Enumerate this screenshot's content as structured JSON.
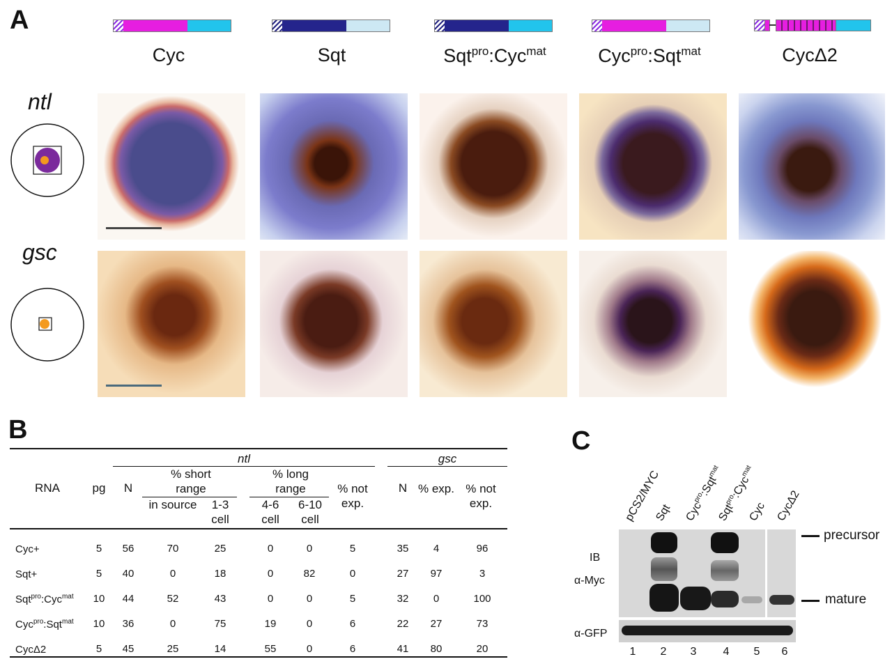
{
  "panels": {
    "a": "A",
    "b": "B",
    "c": "C"
  },
  "constructs": [
    {
      "name": "Cyc",
      "sup1": "",
      "mid": "",
      "sup2": "",
      "color_left": "#e020d0",
      "color_right": "#20c0e0"
    },
    {
      "name": "Sqt",
      "sup1": "",
      "mid": "",
      "sup2": "",
      "color_left": "#202080",
      "color_right": "#c0e0f0"
    },
    {
      "name": "Sqt",
      "sup1": "pro",
      "mid": ":Cyc",
      "sup2": "mat",
      "color_left": "#202080",
      "color_right": "#20c0e0"
    },
    {
      "name": "Cyc",
      "sup1": "pro",
      "mid": ":Sqt",
      "sup2": "mat",
      "color_left": "#e020d0",
      "color_right": "#c0e0f0"
    },
    {
      "name": "CycΔ2",
      "sup1": "",
      "mid": "",
      "sup2": "",
      "color_left": "#e020d0",
      "color_right": "#20c0e0"
    }
  ],
  "row_labels": {
    "ntl": "ntl",
    "gsc": "gsc"
  },
  "table": {
    "group_ntl": "ntl",
    "group_gsc": "gsc",
    "headers": {
      "rna": "RNA",
      "pg": "pg",
      "n": "N",
      "short_range": "% short range",
      "long_range": "% long range",
      "not_exp": "% not exp.",
      "n2": "N",
      "exp": "% exp.",
      "not_exp2": "% not exp.",
      "in_source": "in source",
      "cell_1_3": "1-3 cell",
      "cell_4_6": "4-6 cell",
      "cell_6_10": "6-10 cell"
    },
    "rows": [
      {
        "name": "Cyc+",
        "sup1": "",
        "mid": "",
        "sup2": "",
        "values": [
          "5",
          "56",
          "70",
          "25",
          "0",
          "0",
          "5",
          "35",
          "4",
          "96"
        ]
      },
      {
        "name": "Sqt+",
        "sup1": "",
        "mid": "",
        "sup2": "",
        "values": [
          "5",
          "40",
          "0",
          "18",
          "0",
          "82",
          "0",
          "27",
          "97",
          "3"
        ]
      },
      {
        "name": "Sqt",
        "sup1": "pro",
        "mid": ":Cyc",
        "sup2": "mat",
        "values": [
          "10",
          "44",
          "52",
          "43",
          "0",
          "0",
          "5",
          "32",
          "0",
          "100"
        ]
      },
      {
        "name": "Cyc",
        "sup1": "pro",
        "mid": ":Sqt",
        "sup2": "mat",
        "values": [
          "10",
          "36",
          "0",
          "75",
          "19",
          "0",
          "6",
          "22",
          "27",
          "73"
        ]
      },
      {
        "name": "CycΔ2",
        "sup1": "",
        "mid": "",
        "sup2": "",
        "values": [
          "5",
          "45",
          "25",
          "14",
          "55",
          "0",
          "6",
          "41",
          "80",
          "20"
        ]
      }
    ]
  },
  "blot": {
    "lanes": [
      {
        "name": "pCS2/MYC",
        "sup1": "",
        "mid": "",
        "sup2": "",
        "num": "1"
      },
      {
        "name": "Sqt",
        "sup1": "",
        "mid": "",
        "sup2": "",
        "num": "2"
      },
      {
        "name": "Cyc",
        "sup1": "pro",
        "mid": ":Sqt",
        "sup2": "mat",
        "num": "3"
      },
      {
        "name": "Sqt",
        "sup1": "pro",
        "mid": ":Cyc",
        "sup2": "mat",
        "num": "4"
      },
      {
        "name": "Cyc",
        "sup1": "",
        "mid": "",
        "sup2": "",
        "num": "5"
      },
      {
        "name": "CycΔ2",
        "sup1": "",
        "mid": "",
        "sup2": "",
        "num": "6"
      }
    ],
    "ib_label": "IB",
    "myc_label": "α-Myc",
    "gfp_label": "α-GFP",
    "precursor": "precursor",
    "mature": "mature"
  }
}
